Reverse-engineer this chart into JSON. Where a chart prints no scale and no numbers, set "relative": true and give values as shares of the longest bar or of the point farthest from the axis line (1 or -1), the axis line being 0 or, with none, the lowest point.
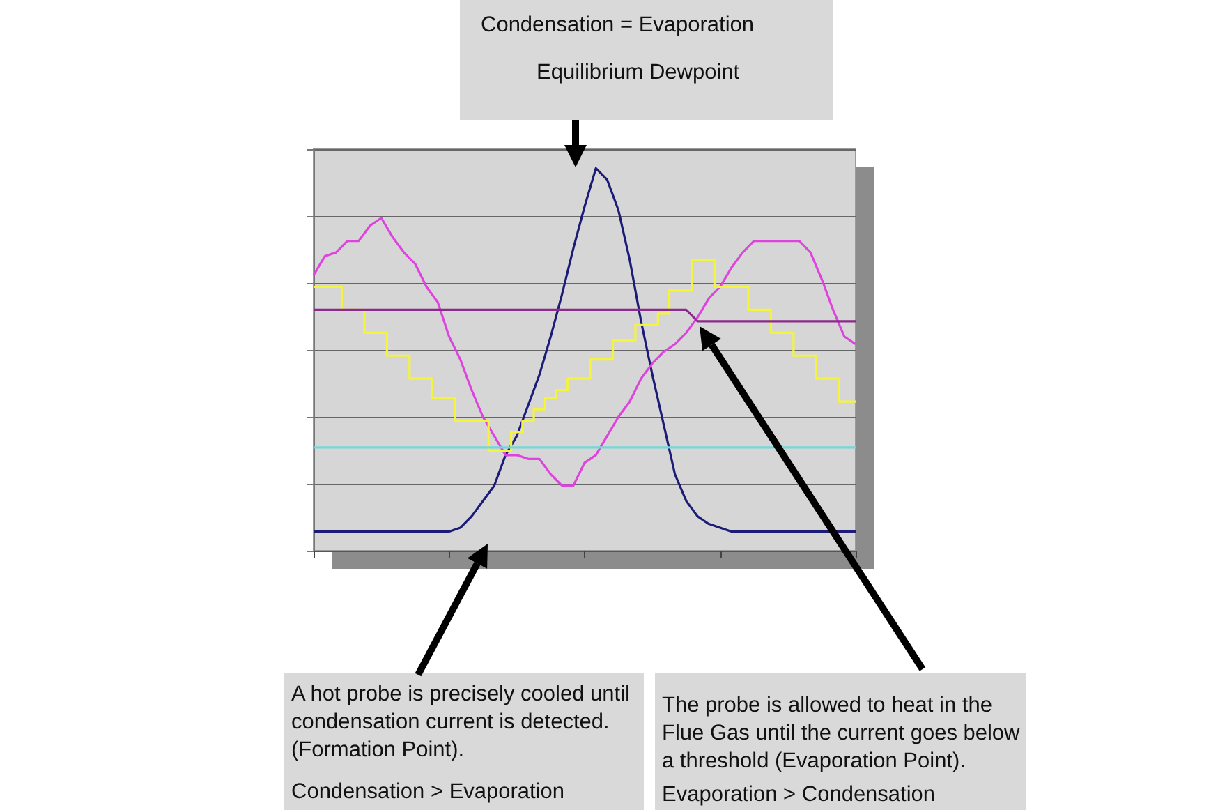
{
  "chart_data": {
    "type": "line",
    "relative": true,
    "grid": "y",
    "line_style": "solid",
    "categories": [
      null,
      null,
      null,
      null,
      null,
      null,
      null,
      null,
      null,
      null,
      null,
      null,
      null,
      null,
      null,
      null,
      null,
      null,
      null,
      null,
      null,
      null,
      null,
      null,
      null,
      null,
      null,
      null,
      null,
      null,
      null,
      null,
      null,
      null,
      null,
      null,
      null,
      null,
      null,
      null,
      null,
      null,
      null,
      null,
      null,
      null,
      null,
      null,
      null
    ],
    "series": [
      {
        "color": "#1c1c78",
        "values": [
          0.05,
          0.05,
          0.05,
          0.05,
          0.05,
          0.05,
          0.05,
          0.05,
          0.05,
          0.05,
          0.05,
          0.05,
          0.05,
          0.06,
          0.09,
          0.13,
          0.17,
          0.25,
          0.3,
          0.38,
          0.46,
          0.56,
          0.67,
          0.79,
          0.9,
          1,
          0.97,
          0.89,
          0.76,
          0.6,
          0.46,
          0.33,
          0.2,
          0.13,
          0.09,
          0.07,
          0.06,
          0.05,
          0.05,
          0.05,
          0.05,
          0.05,
          0.05,
          0.05,
          0.05,
          0.05,
          0.05,
          0.05,
          0.05
        ]
      },
      {
        "color": "#dd44dd",
        "values": [
          0.72,
          0.77,
          0.78,
          0.81,
          0.81,
          0.85,
          0.87,
          0.82,
          0.78,
          0.75,
          0.69,
          0.65,
          0.56,
          0.5,
          0.42,
          0.35,
          0.3,
          0.25,
          0.25,
          0.24,
          0.24,
          0.2,
          0.17,
          0.17,
          0.23,
          0.25,
          0.3,
          0.35,
          0.39,
          0.45,
          0.49,
          0.52,
          0.54,
          0.57,
          0.61,
          0.66,
          0.69,
          0.74,
          0.78,
          0.81,
          0.81,
          0.81,
          0.81,
          0.81,
          0.78,
          0.71,
          0.63,
          0.56,
          0.54
        ]
      },
      {
        "type": "step",
        "color": "#f4f43c",
        "values": [
          0.69,
          0.69,
          0.69,
          0.63,
          0.63,
          0.57,
          0.57,
          0.51,
          0.51,
          0.45,
          0.45,
          0.4,
          0.4,
          0.34,
          0.34,
          0.34,
          0.26,
          0.26,
          0.31,
          0.34,
          0.37,
          0.4,
          0.42,
          0.45,
          0.45,
          0.5,
          0.5,
          0.55,
          0.55,
          0.59,
          0.59,
          0.62,
          0.68,
          0.68,
          0.76,
          0.76,
          0.69,
          0.69,
          0.69,
          0.63,
          0.63,
          0.57,
          0.57,
          0.51,
          0.51,
          0.45,
          0.45,
          0.39,
          0.39
        ]
      },
      {
        "color": "#70d8d8",
        "values": [
          0.27,
          0.27,
          0.27,
          0.27,
          0.27,
          0.27,
          0.27,
          0.27,
          0.27,
          0.27,
          0.27,
          0.27,
          0.27,
          0.27,
          0.27,
          0.27,
          0.27,
          0.27,
          0.27,
          0.27,
          0.27,
          0.27,
          0.27,
          0.27,
          0.27,
          0.27,
          0.27,
          0.27,
          0.27,
          0.27,
          0.27,
          0.27,
          0.27,
          0.27,
          0.27,
          0.27,
          0.27,
          0.27,
          0.27,
          0.27,
          0.27,
          0.27,
          0.27,
          0.27,
          0.27,
          0.27,
          0.27,
          0.27,
          0.27
        ]
      },
      {
        "color": "#8a2a8a",
        "values": [
          0.63,
          0.63,
          0.63,
          0.63,
          0.63,
          0.63,
          0.63,
          0.63,
          0.63,
          0.63,
          0.63,
          0.63,
          0.63,
          0.63,
          0.63,
          0.63,
          0.63,
          0.63,
          0.63,
          0.63,
          0.63,
          0.63,
          0.63,
          0.63,
          0.63,
          0.63,
          0.63,
          0.63,
          0.63,
          0.63,
          0.63,
          0.63,
          0.63,
          0.63,
          0.6,
          0.6,
          0.6,
          0.6,
          0.6,
          0.6,
          0.6,
          0.6,
          0.6,
          0.6,
          0.6,
          0.6,
          0.6,
          0.6,
          0.6
        ]
      }
    ],
    "annotations": [
      "Condensation = Evaporation",
      "Equilibrium Dewpoint",
      "A hot probe is precisely cooled until condensation current is detected. (Formation Point).",
      "Condensation > Evaporation",
      "The probe is allowed to heat in the Flue Gas until the current goes below a threshold (Evaporation Point).",
      "Evaporation > Condensation"
    ]
  }
}
